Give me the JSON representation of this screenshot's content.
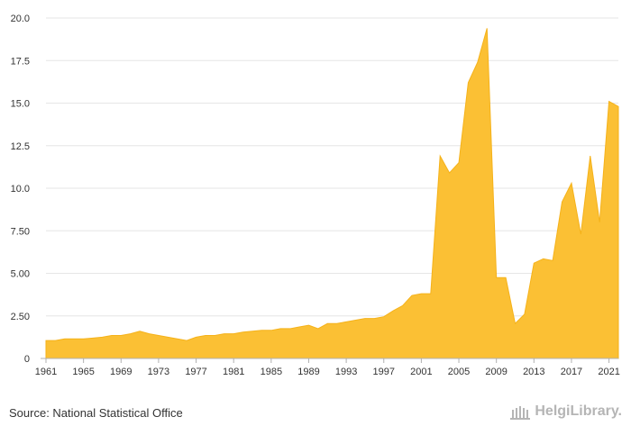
{
  "source_text": "Source: National Statistical Office",
  "logo_text": "HelgiLibrary.",
  "colors": {
    "area": "#fbc034",
    "area_stroke": "#f5b21a",
    "grid": "#e6e6e6",
    "axis": "#b0b0b0",
    "text": "#333333"
  },
  "chart_data": {
    "type": "area",
    "title": "",
    "xlabel": "",
    "ylabel": "",
    "ylim": [
      0,
      20
    ],
    "xlim": [
      1961,
      2022
    ],
    "grid": true,
    "legend": "none",
    "y_ticks": [
      "0",
      "2.50",
      "5.00",
      "7.50",
      "10.0",
      "12.5",
      "15.0",
      "17.5",
      "20.0"
    ],
    "y_tick_values": [
      0,
      2.5,
      5,
      7.5,
      10,
      12.5,
      15,
      17.5,
      20
    ],
    "x_ticks": [
      "1961",
      "1965",
      "1969",
      "1973",
      "1977",
      "1981",
      "1985",
      "1989",
      "1993",
      "1997",
      "2001",
      "2005",
      "2009",
      "2013",
      "2017",
      "2021"
    ],
    "x": [
      1961,
      1962,
      1963,
      1964,
      1965,
      1966,
      1967,
      1968,
      1969,
      1970,
      1971,
      1972,
      1973,
      1974,
      1975,
      1976,
      1977,
      1978,
      1979,
      1980,
      1981,
      1982,
      1983,
      1984,
      1985,
      1986,
      1987,
      1988,
      1989,
      1990,
      1991,
      1992,
      1993,
      1994,
      1995,
      1996,
      1997,
      1998,
      1999,
      2000,
      2001,
      2002,
      2003,
      2004,
      2005,
      2006,
      2007,
      2008,
      2009,
      2010,
      2011,
      2012,
      2013,
      2014,
      2015,
      2016,
      2017,
      2018,
      2019,
      2020,
      2021,
      2022
    ],
    "series": [
      {
        "values": [
          1.05,
          1.05,
          1.15,
          1.15,
          1.15,
          1.2,
          1.25,
          1.35,
          1.35,
          1.45,
          1.6,
          1.45,
          1.35,
          1.25,
          1.15,
          1.05,
          1.25,
          1.35,
          1.35,
          1.45,
          1.45,
          1.55,
          1.6,
          1.65,
          1.65,
          1.75,
          1.75,
          1.85,
          1.95,
          1.75,
          2.05,
          2.05,
          2.15,
          2.25,
          2.35,
          2.35,
          2.45,
          2.8,
          3.1,
          3.7,
          3.8,
          3.8,
          11.9,
          10.9,
          11.5,
          16.2,
          17.4,
          19.4,
          4.75,
          4.75,
          2.05,
          2.6,
          5.6,
          5.85,
          5.75,
          9.2,
          10.3,
          7.3,
          11.9,
          8.0,
          15.1,
          14.8
        ]
      }
    ]
  }
}
